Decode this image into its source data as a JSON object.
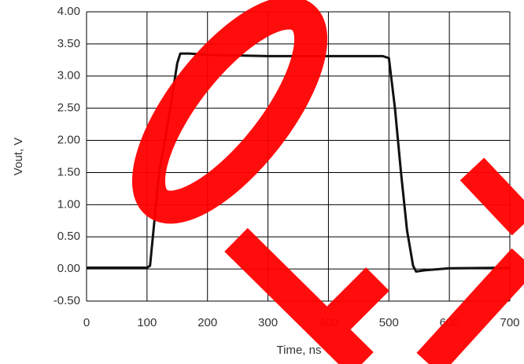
{
  "chart_data": {
    "type": "line",
    "x_label": "Time, ns",
    "y_label": "Vout, V",
    "xlim": [
      0,
      700
    ],
    "xticks": [
      0,
      100,
      200,
      300,
      400,
      500,
      600,
      700
    ],
    "ylim": [
      -0.5,
      4.0
    ],
    "yticks": [
      {
        "value": -0.5,
        "label": "-0.50"
      },
      {
        "value": 0,
        "label": "0.00"
      },
      {
        "value": 0.5,
        "label": "0.50"
      },
      {
        "value": 1,
        "label": "1.00"
      },
      {
        "value": 1.5,
        "label": "1.50"
      },
      {
        "value": 2,
        "label": "2.00"
      },
      {
        "value": 2.5,
        "label": "2.50"
      },
      {
        "value": 3,
        "label": "3.00"
      },
      {
        "value": 3.5,
        "label": "3.50"
      },
      {
        "value": 4,
        "label": "4.00"
      }
    ],
    "grid": true,
    "series": [
      {
        "color": "#111111",
        "x": [
          0,
          100,
          105,
          120,
          135,
          150,
          155,
          170,
          200,
          300,
          400,
          490,
          500,
          510,
          520,
          530,
          540,
          545,
          560,
          600,
          700
        ],
        "values": [
          0.02,
          0.02,
          0.05,
          1.5,
          2.3,
          3.2,
          3.35,
          3.35,
          3.33,
          3.31,
          3.31,
          3.31,
          3.28,
          2.5,
          1.5,
          0.6,
          0.05,
          -0.04,
          -0.02,
          0.01,
          0.02
        ]
      }
    ]
  }
}
